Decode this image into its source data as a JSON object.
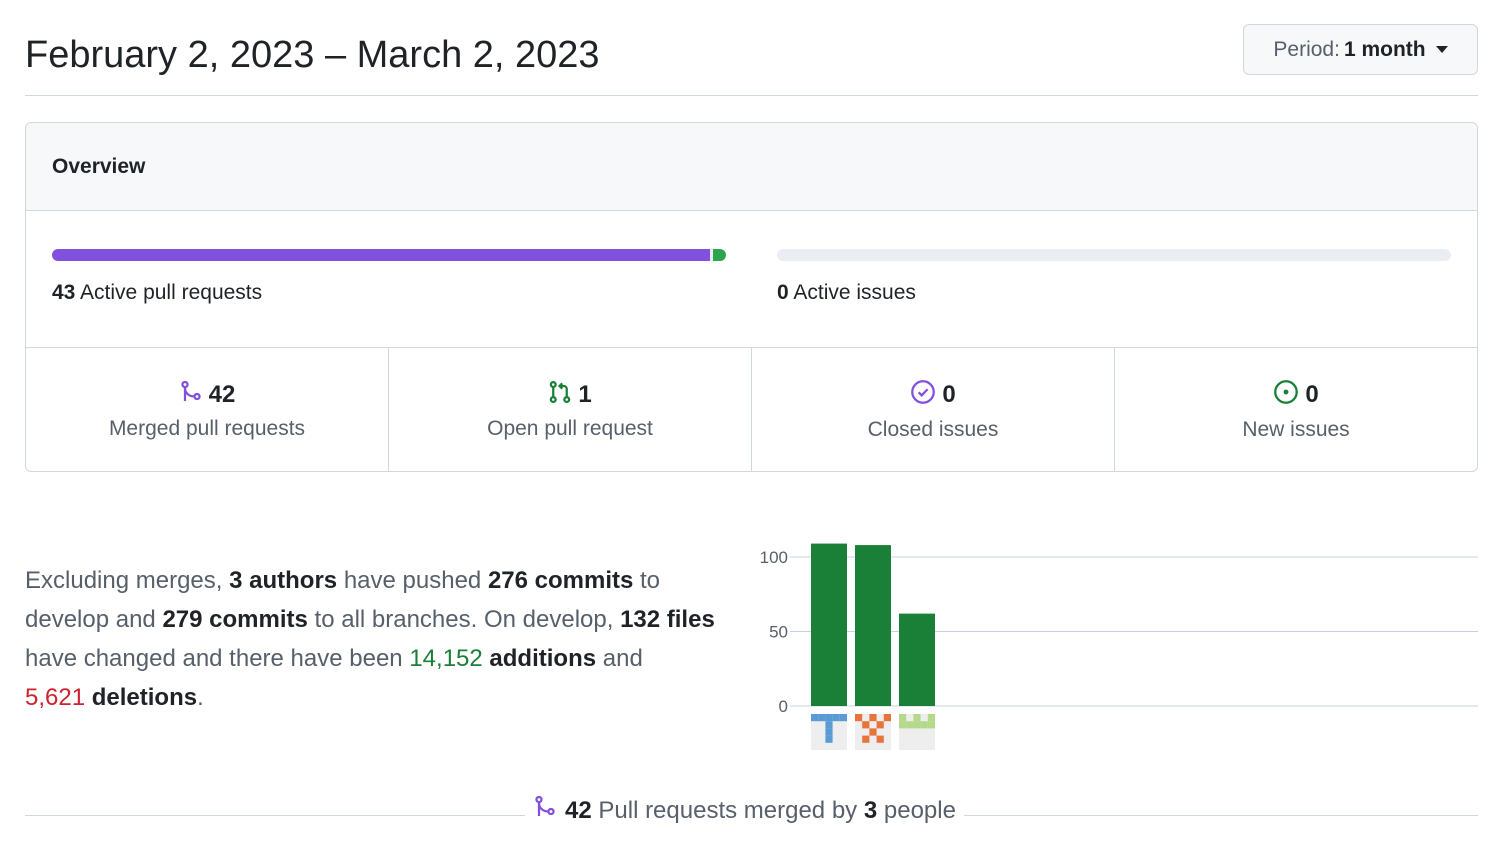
{
  "header": {
    "date_range": "February 2, 2023 – March 2, 2023",
    "period_label": "Period:",
    "period_value": "1 month"
  },
  "overview": {
    "title": "Overview",
    "active_prs_count": "43",
    "active_prs_label": "Active pull requests",
    "active_issues_count": "0",
    "active_issues_label": "Active issues",
    "pr_bar": {
      "merged_fraction": 0.977,
      "open_fraction": 0.023
    },
    "stats": [
      {
        "icon": "merge-icon",
        "count": "42",
        "label": "Merged pull requests"
      },
      {
        "icon": "pull-request-icon",
        "count": "1",
        "label": "Open pull request"
      },
      {
        "icon": "issue-closed-icon",
        "count": "0",
        "label": "Closed issues"
      },
      {
        "icon": "issue-opened-icon",
        "count": "0",
        "label": "New issues"
      }
    ]
  },
  "summary": {
    "t1": "Excluding merges,",
    "authors": "3 authors",
    "t2": "have pushed",
    "commits_default": "276 commits",
    "t3": "to develop and",
    "commits_all": "279 commits",
    "t4": "to all branches. On develop,",
    "files": "132 files",
    "t5": "have changed and there have been",
    "additions_num": "14,152",
    "additions_word": "additions",
    "t6": "and",
    "deletions_num": "5,621",
    "deletions_word": "deletions",
    "t7": "."
  },
  "chart_data": {
    "type": "bar",
    "categories": [
      "author-1",
      "author-2",
      "author-3"
    ],
    "values": [
      109,
      108,
      62
    ],
    "ylim": [
      0,
      100
    ],
    "yticks": [
      "0",
      "50",
      "100"
    ],
    "grid": true,
    "bar_color": "#1a7f37"
  },
  "footer": {
    "count": "42",
    "t1": "Pull requests merged by",
    "people_count": "3",
    "t2": "people"
  },
  "colors": {
    "merged": "#8250df",
    "open": "#1a7f37",
    "deletion": "#cf222e",
    "border": "#d0d7de"
  }
}
